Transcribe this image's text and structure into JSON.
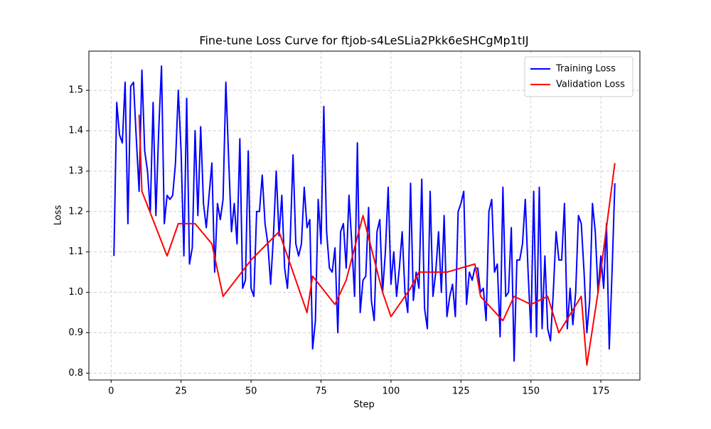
{
  "chart_data": {
    "type": "line",
    "title": "Fine-tune Loss Curve for ftjob-s4LeSLia2Pkk6eSHCgMp1tIJ",
    "x_label": "Step",
    "y_label": "Loss",
    "xlim": [
      -7.95,
      188.95
    ],
    "ylim": [
      0.783,
      1.597
    ],
    "xticks": [
      0,
      25,
      50,
      75,
      100,
      125,
      150,
      175
    ],
    "yticks": [
      0.8,
      0.9,
      {
        "value": 1,
        "label": "1.0"
      },
      1.1,
      1.2,
      1.3,
      1.4,
      1.5
    ],
    "grid": true,
    "legend": "upper right",
    "series": [
      {
        "name": "Training Loss",
        "color": "#0000ff",
        "x": [
          1,
          2,
          3,
          4,
          5,
          6,
          7,
          8,
          9,
          10,
          11,
          12,
          13,
          14,
          15,
          16,
          17,
          18,
          19,
          20,
          21,
          22,
          23,
          24,
          25,
          26,
          27,
          28,
          29,
          30,
          31,
          32,
          33,
          34,
          35,
          36,
          37,
          38,
          39,
          40,
          41,
          42,
          43,
          44,
          45,
          46,
          47,
          48,
          49,
          50,
          51,
          52,
          53,
          54,
          55,
          56,
          57,
          58,
          59,
          60,
          61,
          62,
          63,
          64,
          65,
          66,
          67,
          68,
          69,
          70,
          71,
          72,
          73,
          74,
          75,
          76,
          77,
          78,
          79,
          80,
          81,
          82,
          83,
          84,
          85,
          86,
          87,
          88,
          89,
          90,
          91,
          92,
          93,
          94,
          95,
          96,
          97,
          98,
          99,
          100,
          101,
          102,
          103,
          104,
          105,
          106,
          107,
          108,
          109,
          110,
          111,
          112,
          113,
          114,
          115,
          116,
          117,
          118,
          119,
          120,
          121,
          122,
          123,
          124,
          125,
          126,
          127,
          128,
          129,
          130,
          131,
          132,
          133,
          134,
          135,
          136,
          137,
          138,
          139,
          140,
          141,
          142,
          143,
          144,
          145,
          146,
          147,
          148,
          149,
          150,
          151,
          152,
          153,
          154,
          155,
          156,
          157,
          158,
          159,
          160,
          161,
          162,
          163,
          164,
          165,
          166,
          167,
          168,
          169,
          170,
          171,
          172,
          173,
          174,
          175,
          176,
          177,
          178,
          179,
          180
        ],
        "values": [
          1.09,
          1.47,
          1.39,
          1.37,
          1.52,
          1.17,
          1.51,
          1.52,
          1.38,
          1.25,
          1.55,
          1.35,
          1.3,
          1.2,
          1.47,
          1.19,
          1.4,
          1.56,
          1.17,
          1.24,
          1.23,
          1.24,
          1.32,
          1.5,
          1.35,
          1.09,
          1.48,
          1.07,
          1.11,
          1.4,
          1.19,
          1.41,
          1.22,
          1.16,
          1.24,
          1.32,
          1.05,
          1.22,
          1.18,
          1.23,
          1.52,
          1.33,
          1.15,
          1.22,
          1.12,
          1.38,
          1.01,
          1.03,
          1.35,
          1.01,
          0.99,
          1.2,
          1.2,
          1.29,
          1.17,
          1.12,
          1.02,
          1.14,
          1.3,
          1.14,
          1.24,
          1.06,
          1.01,
          1.13,
          1.34,
          1.12,
          1.09,
          1.12,
          1.26,
          1.16,
          1.18,
          0.86,
          0.93,
          1.23,
          1.12,
          1.46,
          1.15,
          1.06,
          1.05,
          1.11,
          0.9,
          1.15,
          1.17,
          1.06,
          1.24,
          1.12,
          0.99,
          1.37,
          0.95,
          1.03,
          1.04,
          1.21,
          0.98,
          0.93,
          1.15,
          1.18,
          1.0,
          1.1,
          1.26,
          1.02,
          1.1,
          0.99,
          1.06,
          1.15,
          1.0,
          0.95,
          1.27,
          0.98,
          1.05,
          1.01,
          1.28,
          0.96,
          0.91,
          1.25,
          0.99,
          1.05,
          1.15,
          1.0,
          1.19,
          0.94,
          0.99,
          1.02,
          0.94,
          1.2,
          1.22,
          1.25,
          0.97,
          1.05,
          1.03,
          1.06,
          1.06,
          1.0,
          1.01,
          0.93,
          1.2,
          1.23,
          1.05,
          1.07,
          0.89,
          1.26,
          0.99,
          1.0,
          1.16,
          0.83,
          1.08,
          1.08,
          1.12,
          1.23,
          1.05,
          0.9,
          1.25,
          0.89,
          1.26,
          0.91,
          1.09,
          0.91,
          0.88,
          1.0,
          1.15,
          1.08,
          1.08,
          1.22,
          0.91,
          1.01,
          0.92,
          1.0,
          1.19,
          1.17,
          1.05,
          0.9,
          0.98,
          1.22,
          1.15,
          1.0,
          1.09,
          1.01,
          1.17,
          0.86,
          1.05,
          1.27
        ]
      },
      {
        "name": "Validation Loss",
        "color": "#ff0000",
        "x": [
          10,
          11,
          20,
          24,
          30,
          36,
          40,
          50,
          60,
          70,
          72,
          80,
          84,
          90,
          97,
          100,
          107,
          110,
          120,
          130,
          132,
          140,
          144,
          150,
          156,
          160,
          168,
          170,
          174,
          180
        ],
        "values": [
          1.44,
          1.25,
          1.09,
          1.17,
          1.17,
          1.12,
          0.99,
          1.08,
          1.15,
          0.95,
          1.04,
          0.97,
          1.03,
          1.19,
          1.0,
          0.94,
          1.01,
          1.05,
          1.05,
          1.07,
          0.99,
          0.93,
          0.99,
          0.97,
          0.99,
          0.9,
          0.99,
          0.82,
          1.0,
          1.32
        ]
      }
    ]
  }
}
